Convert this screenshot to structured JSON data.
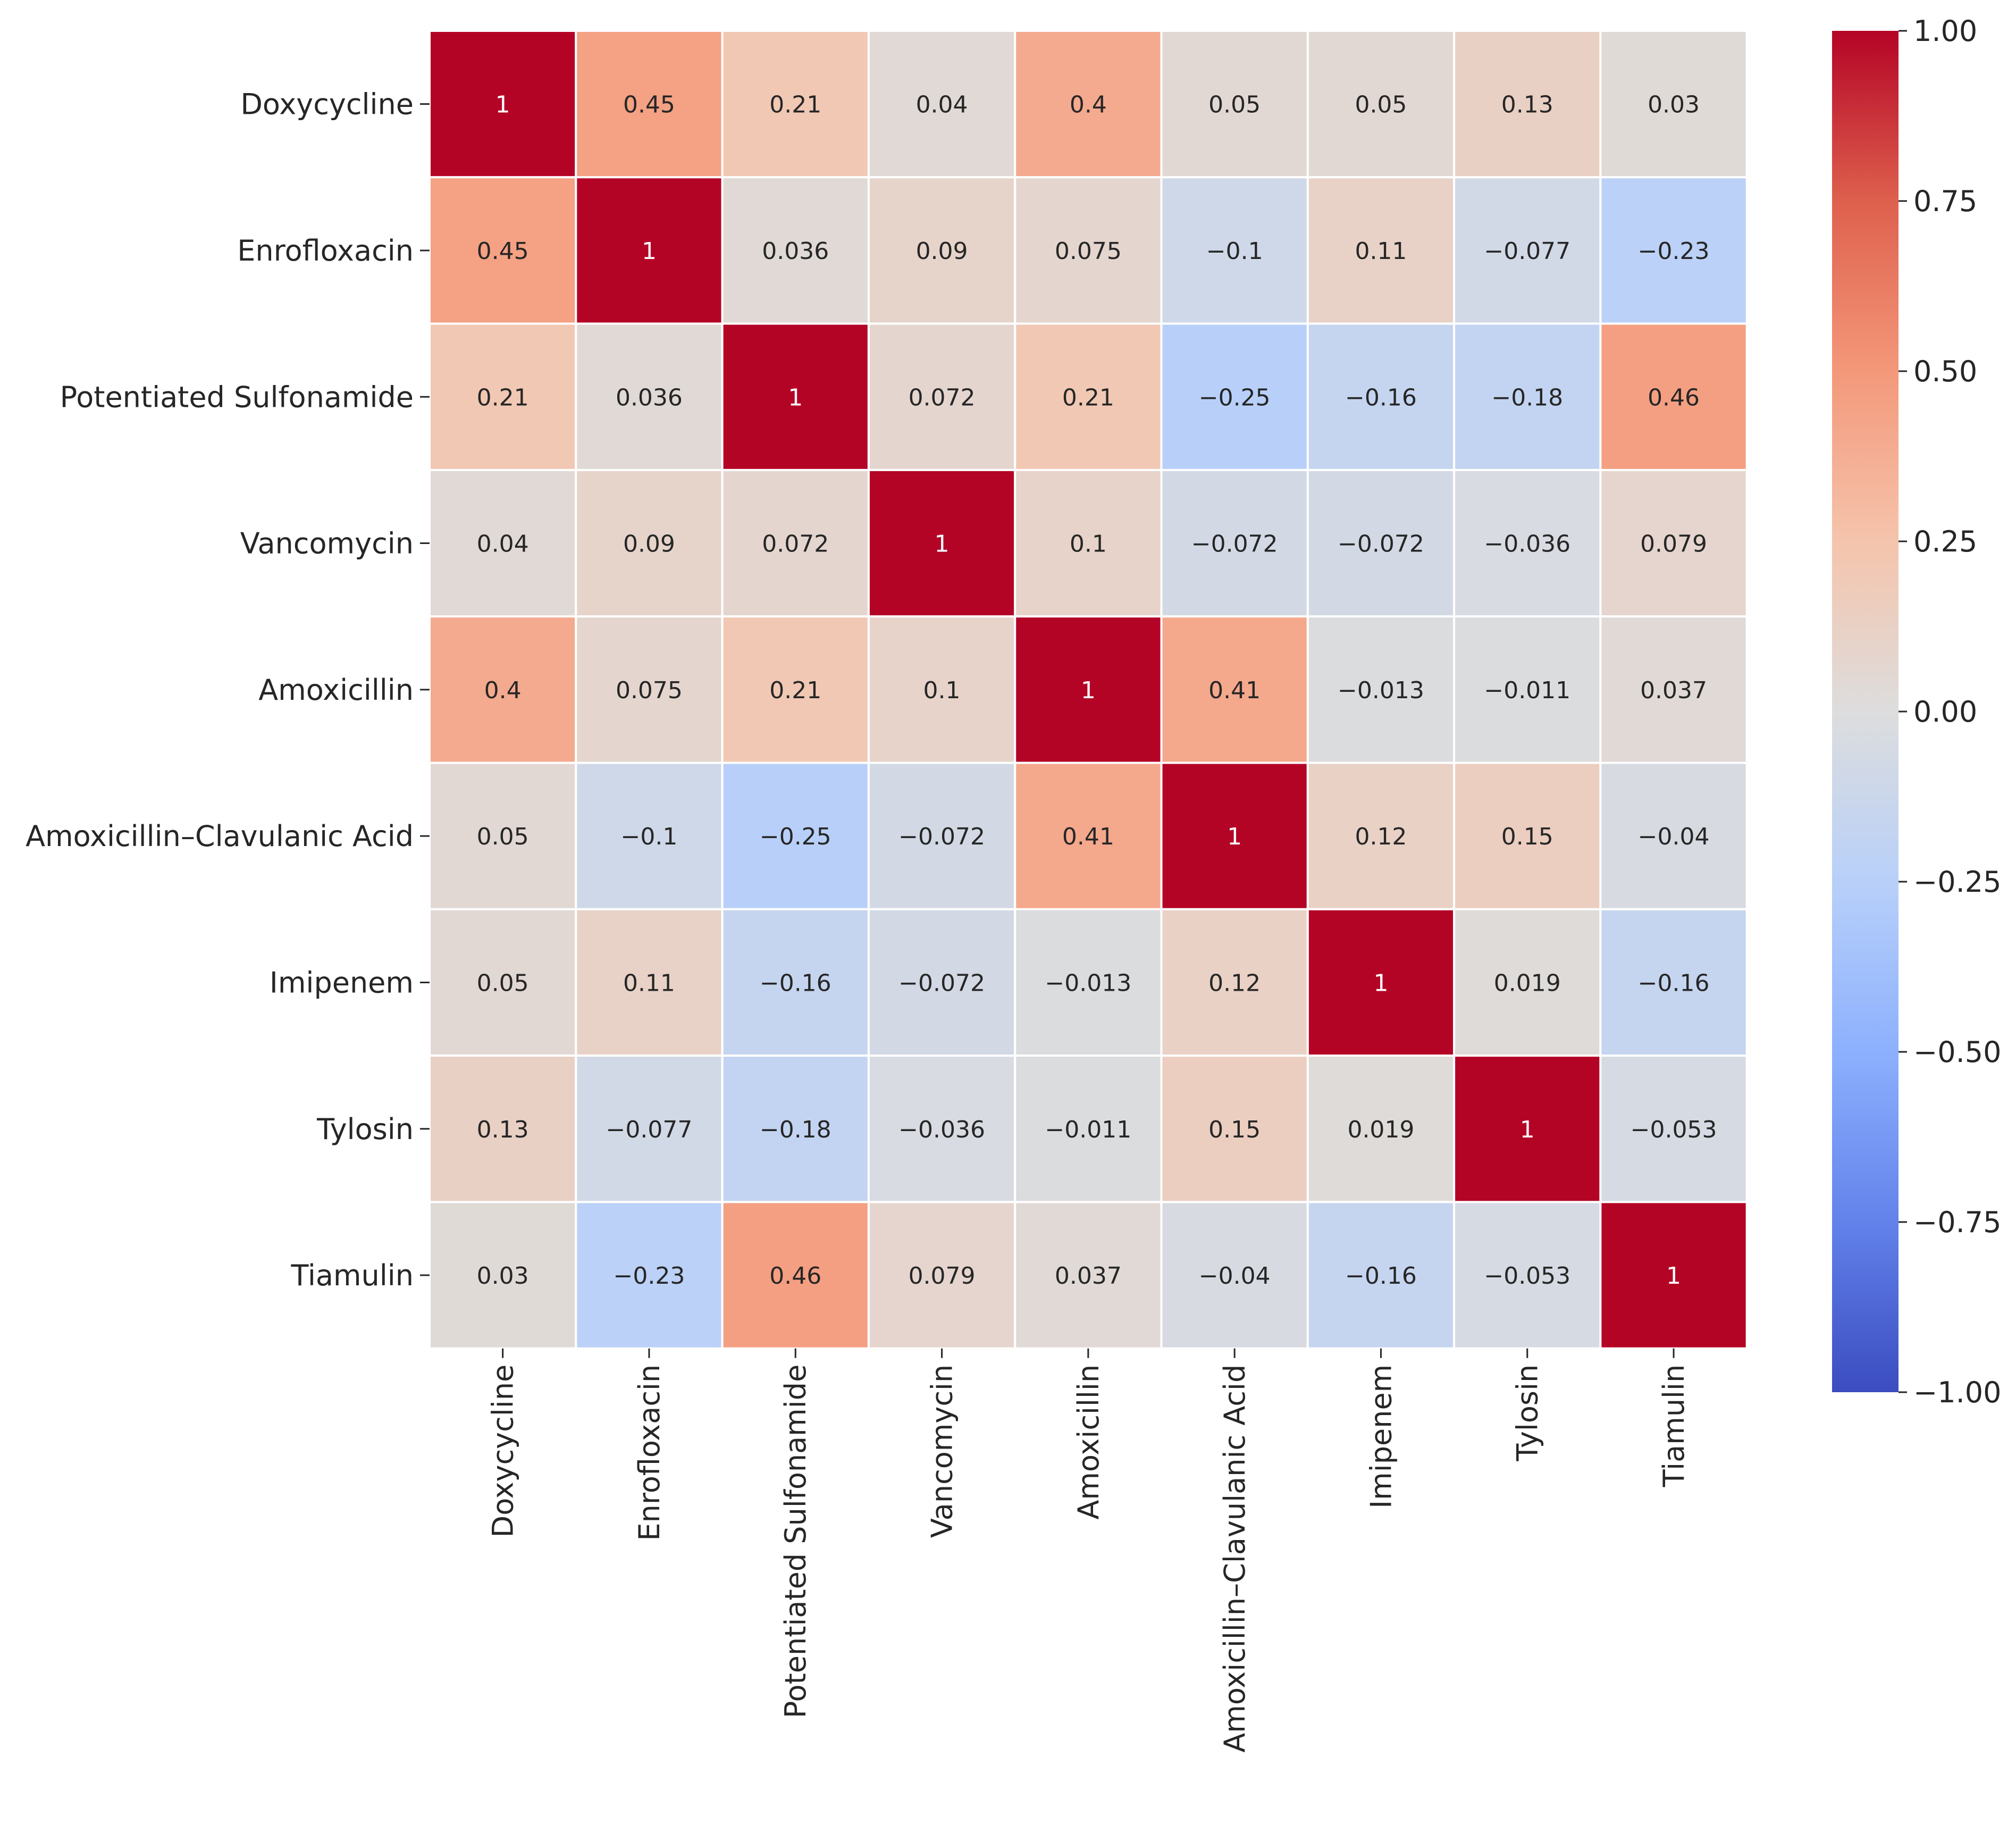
{
  "chart_data": {
    "type": "heatmap",
    "title": "",
    "xlabel": "",
    "ylabel": "",
    "rows": [
      "Doxycycline",
      "Enrofloxacin",
      "Potentiated Sulfonamide",
      "Vancomycin",
      "Amoxicillin",
      "Amoxicillin–Clavulanic Acid",
      "Imipenem",
      "Tylosin",
      "Tiamulin"
    ],
    "columns": [
      "Doxycycline",
      "Enrofloxacin",
      "Potentiated Sulfonamide",
      "Vancomycin",
      "Amoxicillin",
      "Amoxicillin–Clavulanic Acid",
      "Imipenem",
      "Tylosin",
      "Tiamulin"
    ],
    "values": [
      [
        1,
        0.45,
        0.21,
        0.04,
        0.4,
        0.05,
        0.05,
        0.13,
        0.03
      ],
      [
        0.45,
        1,
        0.036,
        0.09,
        0.075,
        -0.1,
        0.11,
        -0.077,
        -0.23
      ],
      [
        0.21,
        0.036,
        1,
        0.072,
        0.21,
        -0.25,
        -0.16,
        -0.18,
        0.46
      ],
      [
        0.04,
        0.09,
        0.072,
        1,
        0.1,
        -0.072,
        -0.072,
        -0.036,
        0.079
      ],
      [
        0.4,
        0.075,
        0.21,
        0.1,
        1,
        0.41,
        -0.013,
        -0.011,
        0.037
      ],
      [
        0.05,
        -0.1,
        -0.25,
        -0.072,
        0.41,
        1,
        0.12,
        0.15,
        -0.04
      ],
      [
        0.05,
        0.11,
        -0.16,
        -0.072,
        -0.013,
        0.12,
        1,
        0.019,
        -0.16
      ],
      [
        0.13,
        -0.077,
        -0.18,
        -0.036,
        -0.011,
        0.15,
        0.019,
        1,
        -0.053
      ],
      [
        0.03,
        -0.23,
        0.46,
        0.079,
        0.037,
        -0.04,
        -0.16,
        -0.053,
        1
      ]
    ],
    "labels": [
      [
        "1",
        "0.45",
        "0.21",
        "0.04",
        "0.4",
        "0.05",
        "0.05",
        "0.13",
        "0.03"
      ],
      [
        "0.45",
        "1",
        "0.036",
        "0.09",
        "0.075",
        "−0.1",
        "0.11",
        "−0.077",
        "−0.23"
      ],
      [
        "0.21",
        "0.036",
        "1",
        "0.072",
        "0.21",
        "−0.25",
        "−0.16",
        "−0.18",
        "0.46"
      ],
      [
        "0.04",
        "0.09",
        "0.072",
        "1",
        "0.1",
        "−0.072",
        "−0.072",
        "−0.036",
        "0.079"
      ],
      [
        "0.4",
        "0.075",
        "0.21",
        "0.1",
        "1",
        "0.41",
        "−0.013",
        "−0.011",
        "0.037"
      ],
      [
        "0.05",
        "−0.1",
        "−0.25",
        "−0.072",
        "0.41",
        "1",
        "0.12",
        "0.15",
        "−0.04"
      ],
      [
        "0.05",
        "0.11",
        "−0.16",
        "−0.072",
        "−0.013",
        "0.12",
        "1",
        "0.019",
        "−0.16"
      ],
      [
        "0.13",
        "−0.077",
        "−0.18",
        "−0.036",
        "−0.011",
        "0.15",
        "0.019",
        "1",
        "−0.053"
      ],
      [
        "0.03",
        "−0.23",
        "0.46",
        "0.079",
        "0.037",
        "−0.04",
        "−0.16",
        "−0.053",
        "1"
      ]
    ],
    "vmin": -1.0,
    "vmax": 1.0,
    "colormap": "coolwarm",
    "colormap_stops": [
      {
        "v": -1.0,
        "color": "#3b4cc0"
      },
      {
        "v": -0.75,
        "color": "#6282ea"
      },
      {
        "v": -0.5,
        "color": "#8db0fe"
      },
      {
        "v": -0.25,
        "color": "#b8d0f9"
      },
      {
        "v": 0.0,
        "color": "#dddddd"
      },
      {
        "v": 0.25,
        "color": "#f5c4ac"
      },
      {
        "v": 0.5,
        "color": "#f4987a"
      },
      {
        "v": 0.75,
        "color": "#de604d"
      },
      {
        "v": 1.0,
        "color": "#b40426"
      }
    ],
    "colorbar": {
      "ticks": [
        1.0,
        0.75,
        0.5,
        0.25,
        0.0,
        -0.25,
        -0.5,
        -0.75,
        -1.0
      ],
      "tick_labels": [
        "1.00",
        "0.75",
        "0.50",
        "0.25",
        "0.00",
        "−0.25",
        "−0.50",
        "−0.75",
        "−1.00"
      ],
      "position": "right"
    },
    "grid": false
  }
}
